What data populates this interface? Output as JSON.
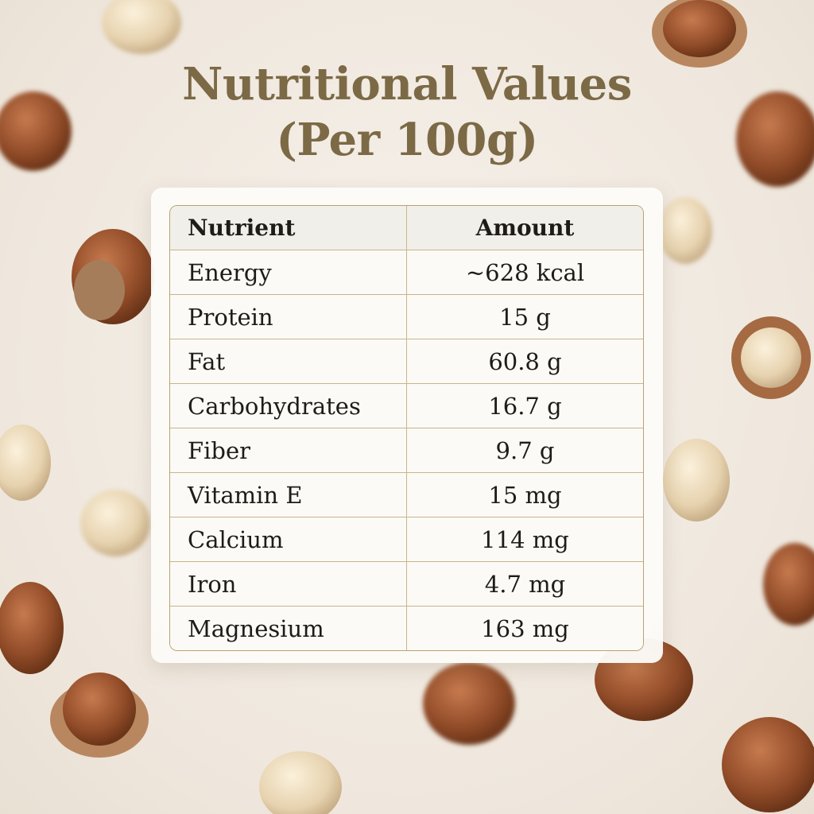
{
  "header": {
    "title": [
      "Nutritional Values",
      "(Per 100g)"
    ]
  },
  "table": {
    "columns": [
      "Nutrient",
      "Amount"
    ],
    "rows": [
      [
        "Energy",
        "~628 kcal"
      ],
      [
        "Protein",
        "15 g"
      ],
      [
        "Fat",
        "60.8 g"
      ],
      [
        "Carbohydrates",
        "16.7 g"
      ],
      [
        "Fiber",
        "9.7 g"
      ],
      [
        "Vitamin E",
        "15 mg"
      ],
      [
        "Calcium",
        "114 mg"
      ],
      [
        "Iron",
        "4.7 mg"
      ],
      [
        "Magnesium",
        "163 mg"
      ]
    ]
  }
}
